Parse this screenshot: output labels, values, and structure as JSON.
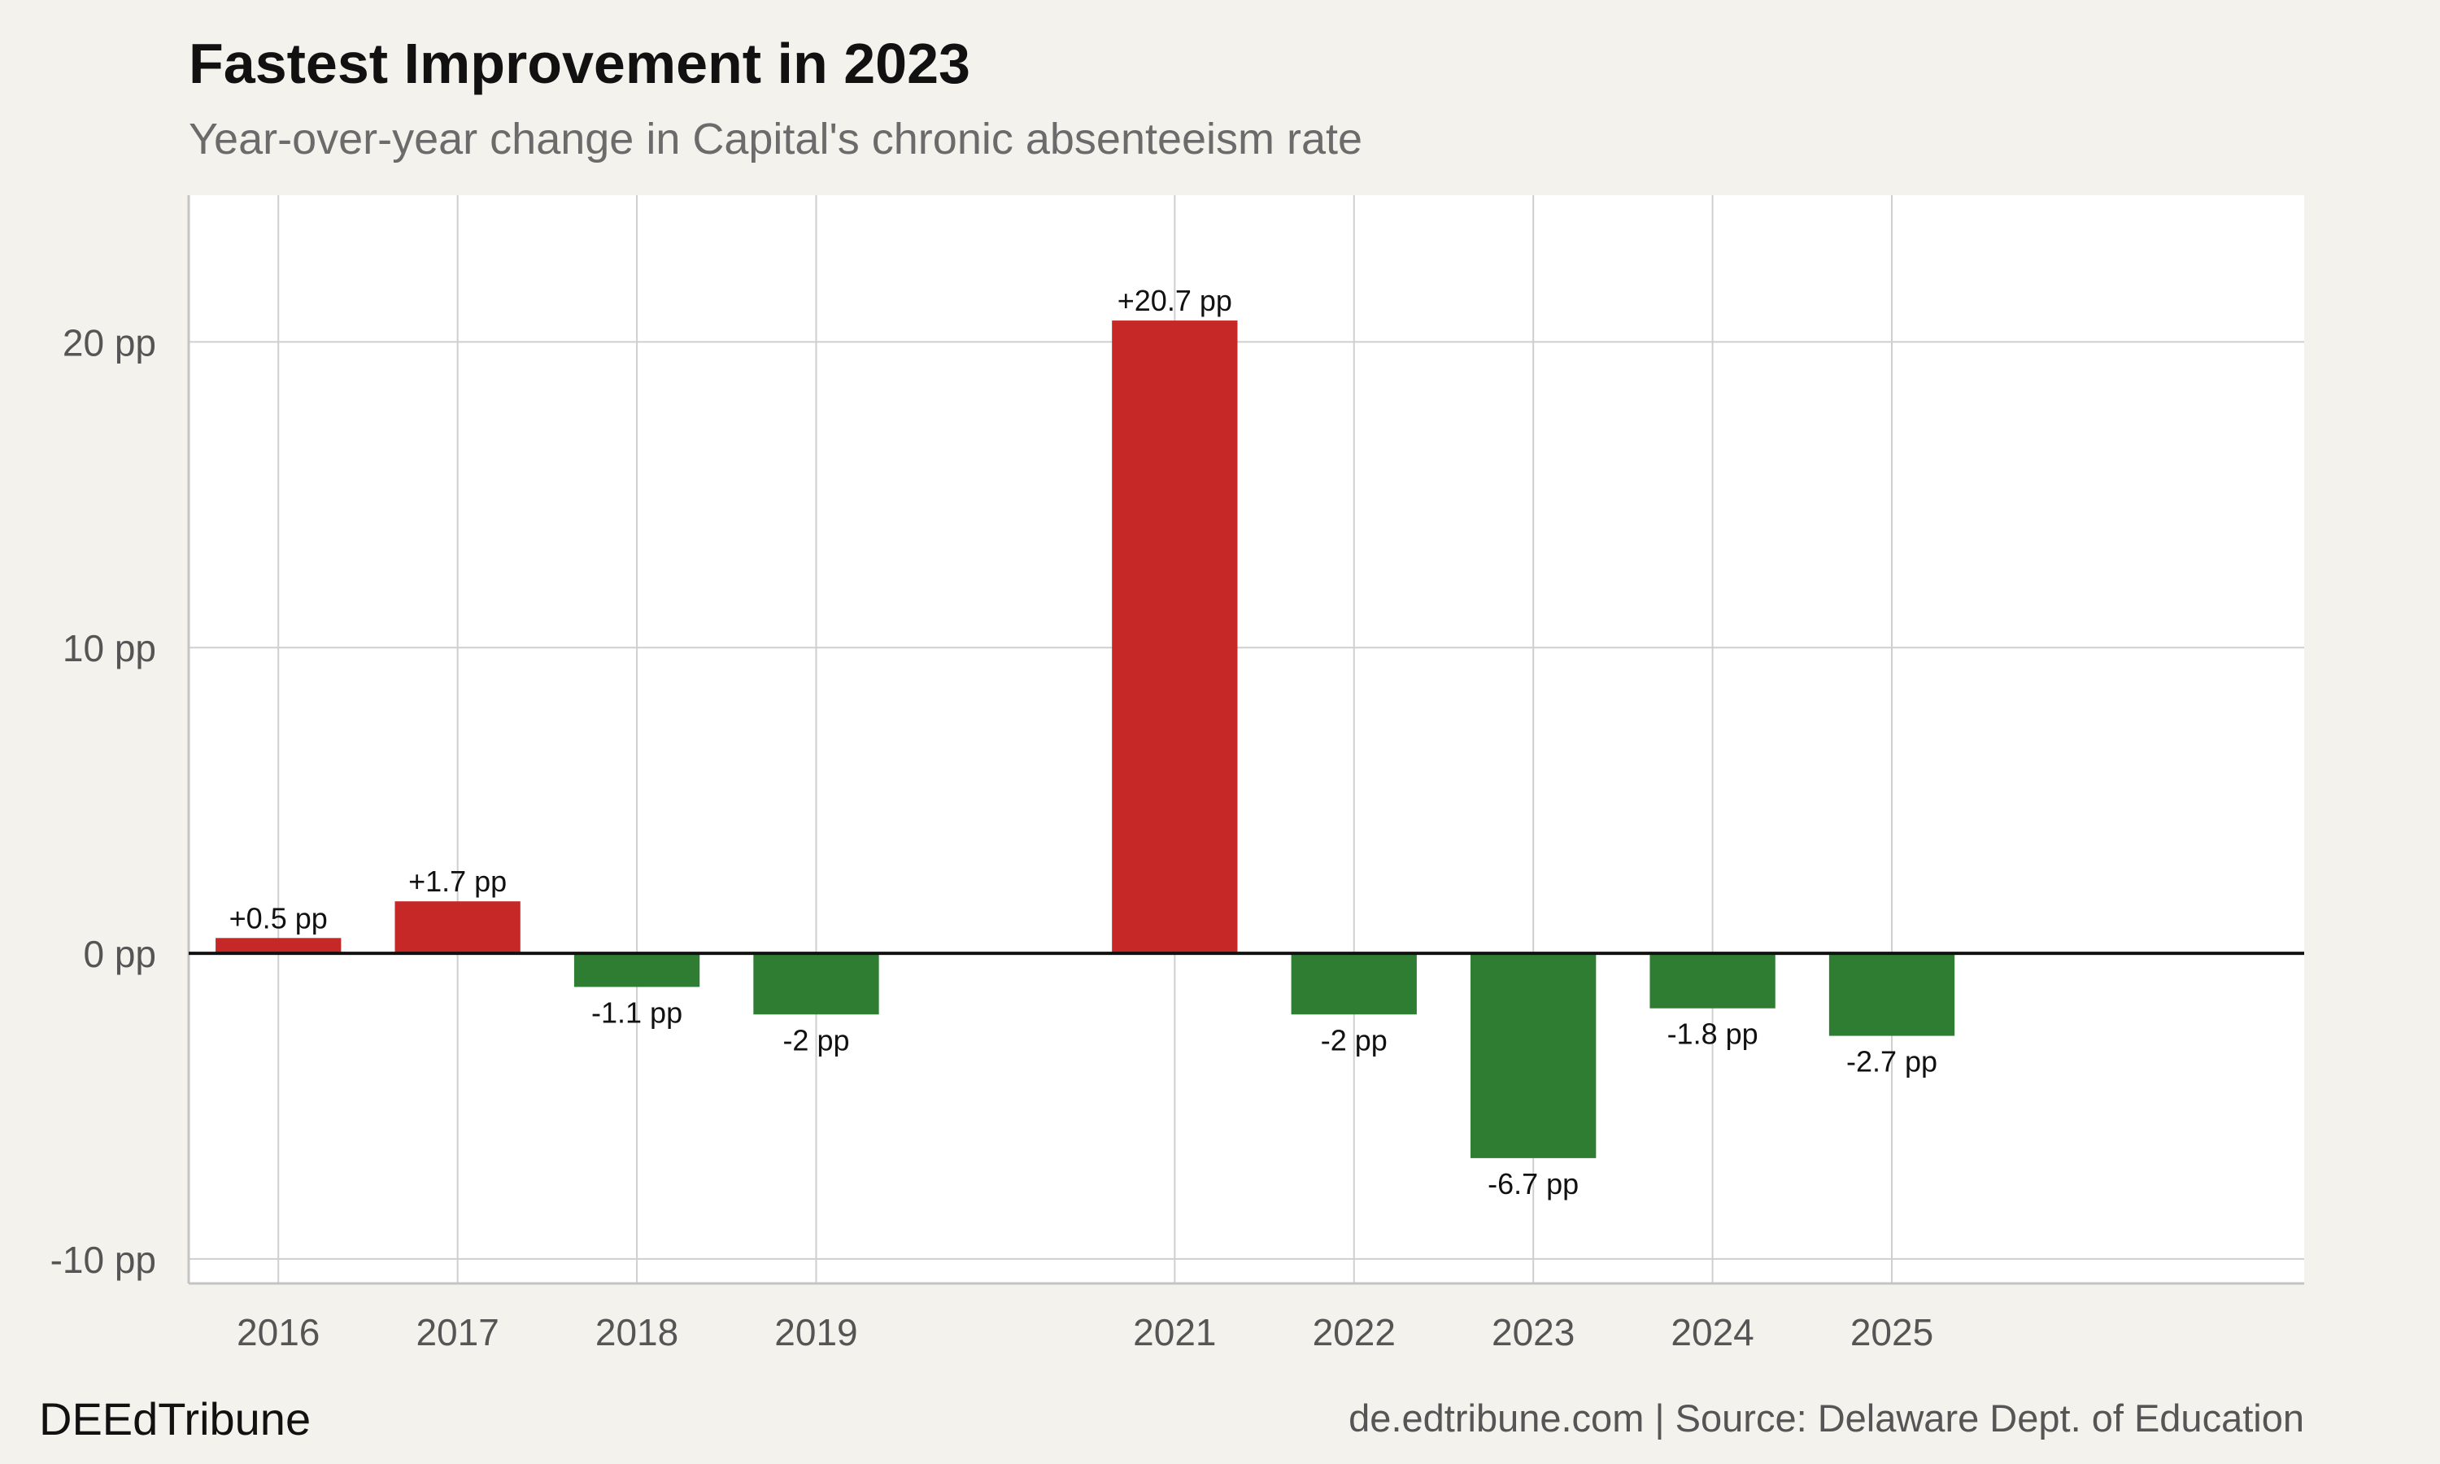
{
  "chart_data": {
    "type": "bar",
    "title": "Fastest Improvement in 2023",
    "subtitle": "Year-over-year change in Capital's chronic absenteeism rate",
    "x": [
      2016,
      2017,
      2018,
      2019,
      2021,
      2022,
      2023,
      2024,
      2025
    ],
    "categories": [
      "2016",
      "2017",
      "2018",
      "2019",
      "2021",
      "2022",
      "2023",
      "2024",
      "2025"
    ],
    "values": [
      0.5,
      1.7,
      -1.1,
      -2,
      20.7,
      -2,
      -6.7,
      -1.8,
      -2.7
    ],
    "data_labels": [
      "+0.5 pp",
      "+1.7 pp",
      "-1.1 pp",
      "-2 pp",
      "+20.7 pp",
      "-2 pp",
      "-6.7 pp",
      "-1.8 pp",
      "-2.7 pp"
    ],
    "y_ticks": [
      -10,
      0,
      10,
      20
    ],
    "y_tick_labels": [
      "-10 pp",
      "0 pp",
      "10 pp",
      "20 pp"
    ],
    "xlim": [
      2015.5,
      2027.3
    ],
    "ylim": [
      -10.8,
      24.8
    ],
    "xlabel": "",
    "ylabel": "",
    "grid": true,
    "colors": {
      "increase": "#c62828",
      "decrease": "#2e7d32",
      "zero_line": "#111111",
      "grid": "#cfcfcf",
      "panel": "#ffffff",
      "background": "#f4f2ed"
    }
  },
  "footer": {
    "brand": "DEEdTribune",
    "source": "de.edtribune.com | Source: Delaware Dept. of Education"
  }
}
